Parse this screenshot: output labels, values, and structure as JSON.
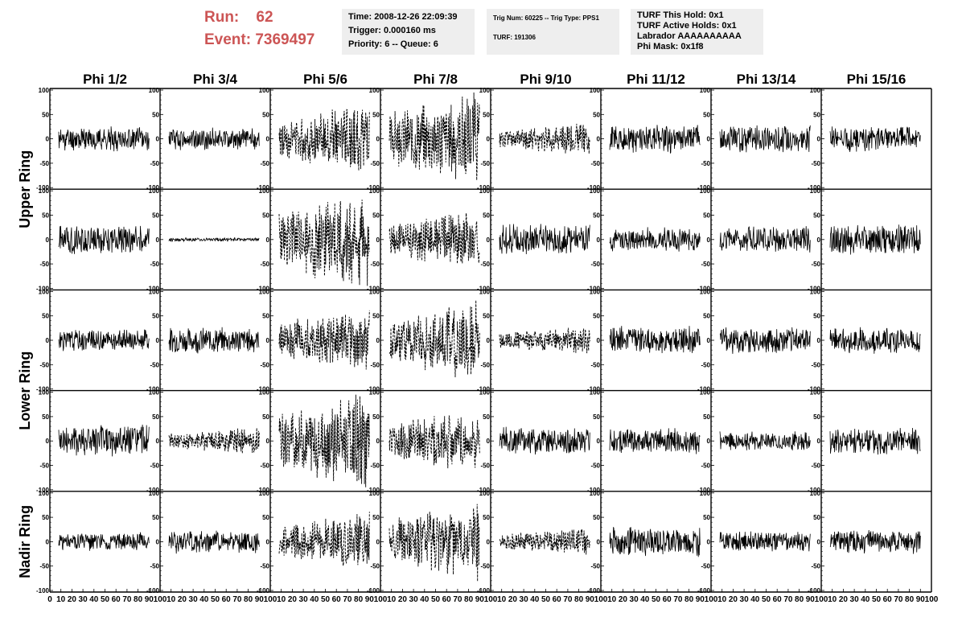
{
  "header": {
    "run_label": "Run:",
    "run_value": "62",
    "event_label": "Event:",
    "event_value": "7369497"
  },
  "info_boxes": [
    [
      "Time: 2008-12-26 22:09:39",
      "Trigger: 0.000160 ms",
      "Priority: 6 -- Queue: 6"
    ],
    [
      "Trig Num: 60225 -- Trig Type: PPS1",
      "",
      "TURF: 191306"
    ],
    [
      "TURF This Hold: 0x1",
      "TURF Active Holds: 0x1",
      "Labrador AAAAAAAAAA",
      "Phi Mask: 0x1f8"
    ]
  ],
  "chart_data": {
    "type": "line",
    "columns": [
      "Phi 1/2",
      "Phi 3/4",
      "Phi 5/6",
      "Phi 7/8",
      "Phi 9/10",
      "Phi 11/12",
      "Phi 13/14",
      "Phi 15/16"
    ],
    "row_groups": [
      {
        "label": "Upper Ring",
        "rows": [
          0,
          1
        ]
      },
      {
        "label": "Lower Ring",
        "rows": [
          2,
          3
        ]
      },
      {
        "label": "Nadir Ring",
        "rows": [
          4
        ]
      }
    ],
    "xlim": [
      0,
      100
    ],
    "ylim": [
      -100,
      100
    ],
    "y_ticks": [
      "100",
      "50",
      "0",
      "-50",
      "-100"
    ],
    "x_ticks": [
      "0",
      "10",
      "20",
      "30",
      "40",
      "50",
      "60",
      "70",
      "80",
      "90",
      "100"
    ],
    "panels": [
      {
        "row": 0,
        "col": 0,
        "style": "solid",
        "amp": 13,
        "seed": 11
      },
      {
        "row": 0,
        "col": 1,
        "style": "solid",
        "amp": 12,
        "seed": 12
      },
      {
        "row": 0,
        "col": 2,
        "style": "dashed",
        "amp": 30,
        "seed": 13
      },
      {
        "row": 0,
        "col": 3,
        "style": "dashed",
        "amp": 40,
        "seed": 14
      },
      {
        "row": 0,
        "col": 4,
        "style": "dashed",
        "amp": 14,
        "seed": 15
      },
      {
        "row": 0,
        "col": 5,
        "style": "solid",
        "amp": 15,
        "seed": 16
      },
      {
        "row": 0,
        "col": 6,
        "style": "solid",
        "amp": 15,
        "seed": 17
      },
      {
        "row": 0,
        "col": 7,
        "style": "solid",
        "amp": 14,
        "seed": 18
      },
      {
        "row": 1,
        "col": 0,
        "style": "solid",
        "amp": 16,
        "seed": 21
      },
      {
        "row": 1,
        "col": 1,
        "style": "solid",
        "amp": 2,
        "seed": 22
      },
      {
        "row": 1,
        "col": 2,
        "style": "dashed",
        "amp": 45,
        "seed": 23
      },
      {
        "row": 1,
        "col": 3,
        "style": "dashed",
        "amp": 25,
        "seed": 24
      },
      {
        "row": 1,
        "col": 4,
        "style": "solid",
        "amp": 17,
        "seed": 25
      },
      {
        "row": 1,
        "col": 5,
        "style": "solid",
        "amp": 13,
        "seed": 26
      },
      {
        "row": 1,
        "col": 6,
        "style": "solid",
        "amp": 14,
        "seed": 27
      },
      {
        "row": 1,
        "col": 7,
        "style": "solid",
        "amp": 17,
        "seed": 28
      },
      {
        "row": 2,
        "col": 0,
        "style": "solid",
        "amp": 12,
        "seed": 31
      },
      {
        "row": 2,
        "col": 1,
        "style": "solid",
        "amp": 14,
        "seed": 32
      },
      {
        "row": 2,
        "col": 2,
        "style": "dashed",
        "amp": 28,
        "seed": 33
      },
      {
        "row": 2,
        "col": 3,
        "style": "dashed",
        "amp": 35,
        "seed": 34
      },
      {
        "row": 2,
        "col": 4,
        "style": "dashed",
        "amp": 12,
        "seed": 35
      },
      {
        "row": 2,
        "col": 5,
        "style": "solid",
        "amp": 15,
        "seed": 36
      },
      {
        "row": 2,
        "col": 6,
        "style": "solid",
        "amp": 15,
        "seed": 37
      },
      {
        "row": 2,
        "col": 7,
        "style": "solid",
        "amp": 14,
        "seed": 38
      },
      {
        "row": 3,
        "col": 0,
        "style": "solid",
        "amp": 18,
        "seed": 41
      },
      {
        "row": 3,
        "col": 1,
        "style": "dashed",
        "amp": 12,
        "seed": 42
      },
      {
        "row": 3,
        "col": 2,
        "style": "dashed",
        "amp": 42,
        "seed": 43
      },
      {
        "row": 3,
        "col": 3,
        "style": "dashed",
        "amp": 28,
        "seed": 44
      },
      {
        "row": 3,
        "col": 4,
        "style": "solid",
        "amp": 15,
        "seed": 45
      },
      {
        "row": 3,
        "col": 5,
        "style": "solid",
        "amp": 14,
        "seed": 46
      },
      {
        "row": 3,
        "col": 6,
        "style": "solid",
        "amp": 10,
        "seed": 47
      },
      {
        "row": 3,
        "col": 7,
        "style": "solid",
        "amp": 16,
        "seed": 48
      },
      {
        "row": 4,
        "col": 0,
        "style": "solid",
        "amp": 10,
        "seed": 51
      },
      {
        "row": 4,
        "col": 1,
        "style": "solid",
        "amp": 13,
        "seed": 52
      },
      {
        "row": 4,
        "col": 2,
        "style": "dashed",
        "amp": 25,
        "seed": 53
      },
      {
        "row": 4,
        "col": 3,
        "style": "dashed",
        "amp": 35,
        "seed": 54
      },
      {
        "row": 4,
        "col": 4,
        "style": "dashed",
        "amp": 12,
        "seed": 55
      },
      {
        "row": 4,
        "col": 5,
        "style": "solid",
        "amp": 16,
        "seed": 56
      },
      {
        "row": 4,
        "col": 6,
        "style": "solid",
        "amp": 11,
        "seed": 57
      },
      {
        "row": 4,
        "col": 7,
        "style": "solid",
        "amp": 13,
        "seed": 58
      }
    ]
  }
}
